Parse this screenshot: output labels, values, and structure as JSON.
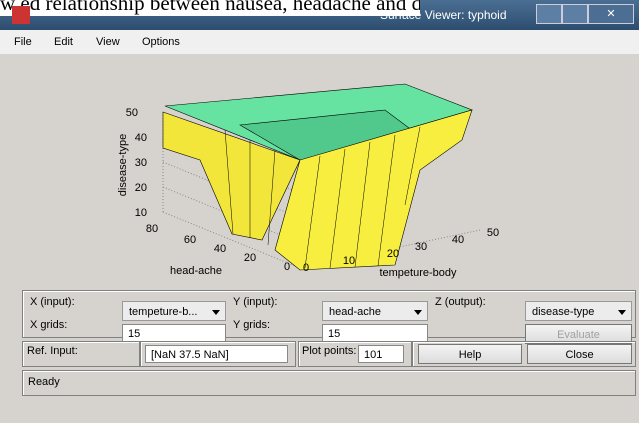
{
  "caption_fragment": "w ed relationship between nausea, headache and disease ty",
  "window": {
    "title": "Surface Viewer: typhoid"
  },
  "menu": [
    "File",
    "Edit",
    "View",
    "Options"
  ],
  "plot": {
    "z_label": "disease-type",
    "z_ticks": [
      "50",
      "40",
      "30",
      "20",
      "10"
    ],
    "y_label": "head-ache",
    "y_ticks": [
      "80",
      "60",
      "40",
      "20",
      "0"
    ],
    "x_label": "tempeture-body",
    "x_ticks": [
      "0",
      "10",
      "20",
      "30",
      "40",
      "50"
    ]
  },
  "controls": {
    "x_input_label": "X (input):",
    "x_input": "tempeture-b...",
    "y_input_label": "Y (input):",
    "y_input": "head-ache",
    "z_output_label": "Z (output):",
    "z_output": "disease-type",
    "x_grids_label": "X grids:",
    "x_grids": "15",
    "y_grids_label": "Y grids:",
    "y_grids": "15",
    "evaluate": "Evaluate",
    "ref_input_label": "Ref. Input:",
    "ref_input": "[NaN 37.5 NaN]",
    "plot_points_label": "Plot points:",
    "plot_points": "101",
    "help": "Help",
    "close": "Close"
  },
  "status": "Ready"
}
